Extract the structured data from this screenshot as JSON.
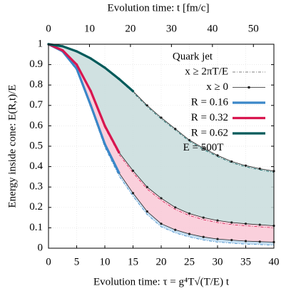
{
  "chart_data": {
    "type": "line",
    "x_label": "Evolution time: τ = g⁴T√(T/E) t",
    "x2_label": "Evolution time: t [fm/c]",
    "y_label": "Energy inside cone: E(R,t)/E",
    "legend_title": "Quark jet",
    "annotation": "E = 500T",
    "legend": "upper right",
    "grid": true,
    "x": [
      0,
      2.5,
      5,
      7.5,
      10,
      12.5,
      15,
      17.5,
      20,
      22.5,
      25,
      27.5,
      30,
      32.5,
      35,
      37.5,
      40
    ],
    "xlim": [
      0,
      40
    ],
    "xticks": [
      0,
      5,
      10,
      15,
      20,
      25,
      30,
      35,
      40
    ],
    "x2lim": [
      0,
      55
    ],
    "x2ticks": [
      0,
      10,
      20,
      30,
      40,
      50
    ],
    "ylim": [
      0,
      1
    ],
    "yticks": [
      0,
      0.1,
      0.2,
      0.3,
      0.4,
      0.5,
      0.6,
      0.7,
      0.8,
      0.9,
      1
    ],
    "reference_curves": [
      {
        "name": "x ≥ 2πT/E",
        "color": "#555555",
        "style": "dashdot",
        "curves": [
          [
            1,
            0.962,
            0.872,
            0.69,
            0.495,
            0.355,
            0.255,
            0.165,
            0.105,
            0.075,
            0.055,
            0.04,
            0.03,
            0.025,
            0.02,
            0.018,
            0.015
          ],
          [
            1,
            0.968,
            0.895,
            0.762,
            0.59,
            0.46,
            0.37,
            0.29,
            0.235,
            0.19,
            0.16,
            0.14,
            0.126,
            0.116,
            0.11,
            0.105,
            0.1
          ],
          [
            1,
            0.99,
            0.963,
            0.927,
            0.88,
            0.825,
            0.764,
            0.694,
            0.634,
            0.579,
            0.524,
            0.484,
            0.449,
            0.419,
            0.399,
            0.384,
            0.372
          ]
        ]
      },
      {
        "name": "x ≥ 0",
        "color": "#222222",
        "style": "dots",
        "curves": [
          [
            1,
            0.965,
            0.88,
            0.7,
            0.51,
            0.37,
            0.27,
            0.18,
            0.12,
            0.09,
            0.07,
            0.055,
            0.045,
            0.04,
            0.035,
            0.032,
            0.03
          ],
          [
            1,
            0.97,
            0.9,
            0.77,
            0.6,
            0.47,
            0.38,
            0.3,
            0.245,
            0.2,
            0.17,
            0.15,
            0.136,
            0.126,
            0.12,
            0.115,
            0.11
          ],
          [
            1,
            0.99,
            0.965,
            0.93,
            0.885,
            0.83,
            0.77,
            0.7,
            0.64,
            0.585,
            0.53,
            0.49,
            0.455,
            0.425,
            0.405,
            0.39,
            0.378
          ]
        ]
      }
    ],
    "series": [
      {
        "name": "R = 0.16",
        "color": "#3a87c8",
        "fill": "#bcd9f0",
        "values": [
          1,
          0.965,
          0.88,
          0.7,
          0.51,
          0.37,
          null,
          null,
          null,
          null,
          null,
          null,
          null,
          null,
          null,
          null,
          null
        ]
      },
      {
        "name": "R = 0.32",
        "color": "#d8164f",
        "fill": "#f9c8d6",
        "values": [
          1,
          0.97,
          0.9,
          0.77,
          0.6,
          0.47,
          null,
          null,
          null,
          null,
          null,
          null,
          null,
          null,
          null,
          null,
          null
        ]
      },
      {
        "name": "R = 0.62",
        "color": "#005a5a",
        "fill": "#c8dcdc",
        "values": [
          1,
          0.99,
          0.965,
          0.93,
          0.885,
          0.83,
          0.77,
          null,
          null,
          null,
          null,
          null,
          null,
          null,
          null,
          null,
          null
        ]
      }
    ]
  }
}
